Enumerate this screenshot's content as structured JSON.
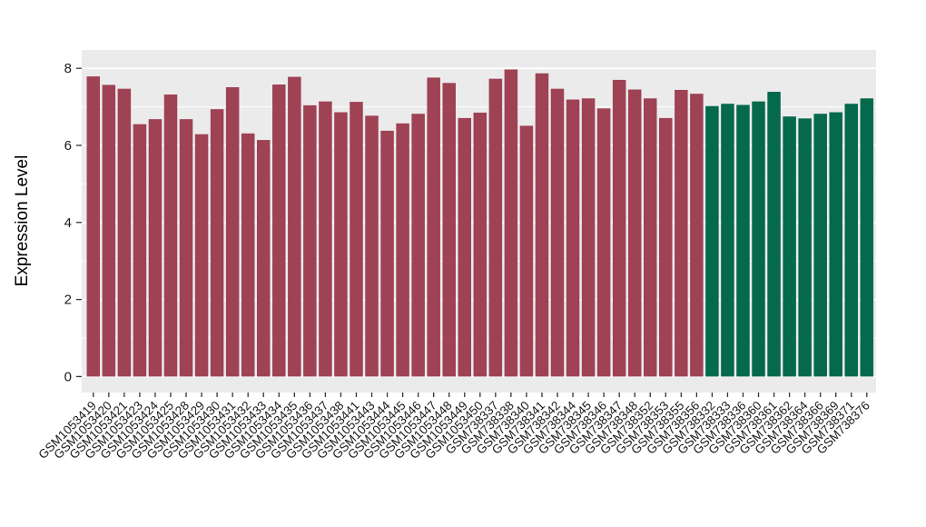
{
  "chart_data": {
    "type": "bar",
    "title": "",
    "ylabel": "Expression Level",
    "xlabel": "",
    "ylim": [
      0,
      8.48
    ],
    "yticks": [
      0,
      2,
      4,
      6,
      8
    ],
    "yticks_minor": [
      1,
      3,
      5,
      7
    ],
    "grid": "white gridlines on gray panel (ggplot style)",
    "legend": "none",
    "categories": [
      "GSM1053419",
      "GSM1053420",
      "GSM1053421",
      "GSM1053423",
      "GSM1053424",
      "GSM1053425",
      "GSM1053428",
      "GSM1053429",
      "GSM1053430",
      "GSM1053431",
      "GSM1053432",
      "GSM1053433",
      "GSM1053434",
      "GSM1053435",
      "GSM1053436",
      "GSM1053437",
      "GSM1053438",
      "GSM1053441",
      "GSM1053443",
      "GSM1053444",
      "GSM1053445",
      "GSM1053446",
      "GSM1053447",
      "GSM1053448",
      "GSM1053449",
      "GSM1053450",
      "GSM738337",
      "GSM738338",
      "GSM738340",
      "GSM738341",
      "GSM738342",
      "GSM738344",
      "GSM738345",
      "GSM738346",
      "GSM738347",
      "GSM738348",
      "GSM738352",
      "GSM738353",
      "GSM738355",
      "GSM738356",
      "GSM738332",
      "GSM738333",
      "GSM738336",
      "GSM738360",
      "GSM738361",
      "GSM738362",
      "GSM738364",
      "GSM738366",
      "GSM738369",
      "GSM738371",
      "GSM738376"
    ],
    "values": [
      7.79,
      7.57,
      7.47,
      6.55,
      6.68,
      7.32,
      6.68,
      6.29,
      6.94,
      7.51,
      6.31,
      6.14,
      7.58,
      7.78,
      7.04,
      7.14,
      6.86,
      7.13,
      6.77,
      6.38,
      6.57,
      6.82,
      7.76,
      7.62,
      6.71,
      6.85,
      7.73,
      7.97,
      6.51,
      7.87,
      7.47,
      7.19,
      7.22,
      6.96,
      7.7,
      7.45,
      7.22,
      6.71,
      7.44,
      7.34,
      7.02,
      7.08,
      7.05,
      7.14,
      7.39,
      6.75,
      6.7,
      6.82,
      6.86,
      7.08,
      7.22
    ],
    "bar_groups": [
      {
        "name": "red-group",
        "color": "#9E4254",
        "start": 0,
        "count": 40
      },
      {
        "name": "green-group",
        "color": "#05694C",
        "start": 40,
        "count": 11
      }
    ]
  },
  "colors": {
    "panel_bg": "#EBEBEB",
    "gridline": "#FFFFFF",
    "axis_text": "#1A1A1A",
    "tick_mark": "#333333",
    "background": "#FFFFFF"
  }
}
